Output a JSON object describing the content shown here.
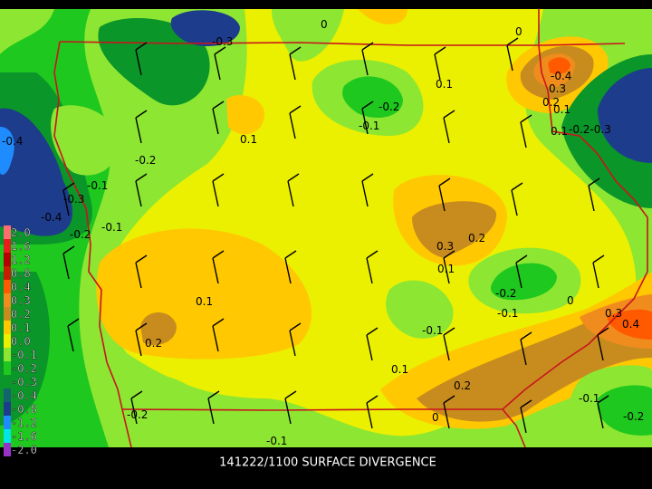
{
  "title": "141222/1100 SURFACE DIVERGENCE",
  "colorbar": [
    {
      "label": "2.0",
      "color": "#ff6e6e"
    },
    {
      "label": "1.6",
      "color": "#e61e1e"
    },
    {
      "label": "1.2",
      "color": "#b40000"
    },
    {
      "label": "0.8",
      "color": "#c81e00"
    },
    {
      "label": "0.4",
      "color": "#ff5a00"
    },
    {
      "label": "0.3",
      "color": "#f08c1e"
    },
    {
      "label": "0.2",
      "color": "#c88c1e"
    },
    {
      "label": "0.1",
      "color": "#ffc800"
    },
    {
      "label": "0.0",
      "color": "#ebf000"
    },
    {
      "label": "-0.1",
      "color": "#8ce632"
    },
    {
      "label": "-0.2",
      "color": "#1ec81e"
    },
    {
      "label": "-0.3",
      "color": "#0a9628"
    },
    {
      "label": "-0.4",
      "color": "#14646e"
    },
    {
      "label": "-0.8",
      "color": "#1e3c8c"
    },
    {
      "label": "-1.2",
      "color": "#1e8cff"
    },
    {
      "label": "-1.6",
      "color": "#00e6e6"
    },
    {
      "label": "-2.0",
      "color": "#9632c8"
    }
  ],
  "contour_labels": [
    "-0.3",
    "0",
    "0",
    "0.1",
    "-0.4",
    "0.3",
    "0.2",
    "0.1",
    "-0.2-0.3",
    "0.1",
    "-0.2",
    "-0.1",
    "0.1",
    "-0.4",
    "-0.2",
    "-0.1",
    "-0.3",
    "-0.4",
    "-0.1",
    "-0.2",
    "0.3",
    "0.2",
    "0.1",
    "-0.2",
    "-0.1",
    "0",
    "0.3",
    "0.4",
    "0.1",
    "0.2",
    "-0.1",
    "0.1",
    "0.2",
    "-0.1",
    "-0.2",
    "0",
    "-0.2",
    "-0.1"
  ]
}
